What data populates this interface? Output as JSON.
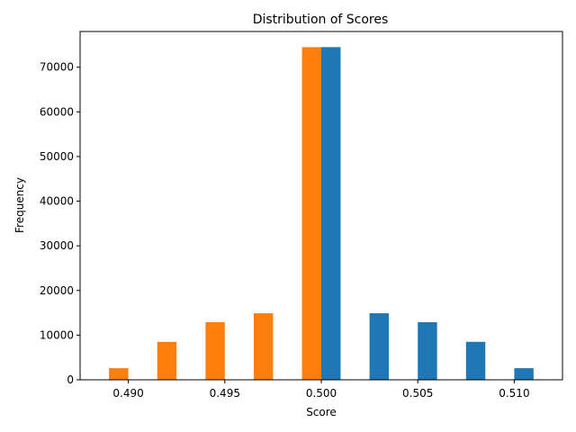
{
  "chart_data": {
    "type": "bar",
    "title": "Distribution of Scores",
    "xlabel": "Score",
    "ylabel": "Frequency",
    "xlim": [
      0.4875,
      0.5125
    ],
    "ylim": [
      0,
      78000
    ],
    "bar_width": 0.001,
    "xticks": [
      0.49,
      0.495,
      0.5,
      0.505,
      0.51
    ],
    "xtick_labels": [
      "0.490",
      "0.495",
      "0.500",
      "0.505",
      "0.510"
    ],
    "yticks": [
      0,
      10000,
      20000,
      30000,
      40000,
      50000,
      60000,
      70000
    ],
    "ytick_labels": [
      "0",
      "10000",
      "20000",
      "30000",
      "40000",
      "50000",
      "60000",
      "70000"
    ],
    "grid": false,
    "series": [
      {
        "color": "#ff7f0e",
        "x": [
          0.4895,
          0.492,
          0.4945,
          0.497,
          0.4995
        ],
        "values": [
          2600,
          8500,
          12900,
          14900,
          74500
        ]
      },
      {
        "color": "#1f77b4",
        "x": [
          0.5005,
          0.503,
          0.5055,
          0.508,
          0.5105
        ],
        "values": [
          74500,
          14900,
          12900,
          8500,
          2600
        ]
      }
    ]
  }
}
